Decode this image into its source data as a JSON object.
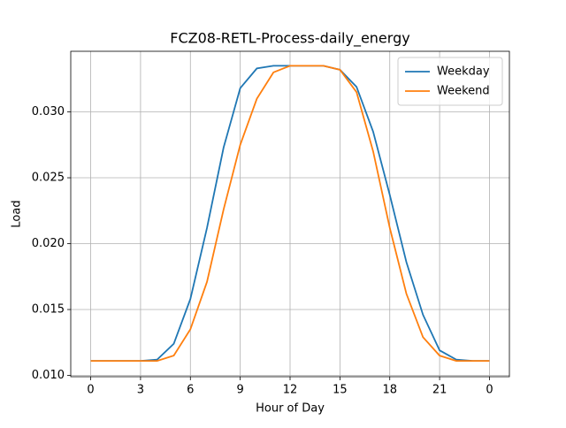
{
  "chart_data": {
    "type": "line",
    "title": "FCZ08-RETL-Process-daily_energy",
    "xlabel": "Hour of Day",
    "ylabel": "Load",
    "x": [
      0,
      1,
      2,
      3,
      4,
      5,
      6,
      7,
      8,
      9,
      10,
      11,
      12,
      13,
      14,
      15,
      16,
      17,
      18,
      19,
      20,
      21,
      22,
      23,
      24
    ],
    "series": [
      {
        "name": "Weekday",
        "color": "#1f77b4",
        "values": [
          0.0111,
          0.0111,
          0.0111,
          0.0111,
          0.0112,
          0.0124,
          0.0158,
          0.0212,
          0.0273,
          0.0318,
          0.0333,
          0.0335,
          0.0335,
          0.0335,
          0.0335,
          0.0332,
          0.0319,
          0.0285,
          0.0237,
          0.0186,
          0.0146,
          0.0119,
          0.0112,
          0.0111,
          0.0111
        ]
      },
      {
        "name": "Weekend",
        "color": "#ff7f0e",
        "values": [
          0.0111,
          0.0111,
          0.0111,
          0.0111,
          0.0111,
          0.0115,
          0.0135,
          0.0171,
          0.0226,
          0.0275,
          0.031,
          0.033,
          0.0335,
          0.0335,
          0.0335,
          0.0332,
          0.0315,
          0.027,
          0.0212,
          0.0162,
          0.0129,
          0.0115,
          0.0111,
          0.0111,
          0.0111
        ]
      }
    ],
    "xlim": [
      -1.2,
      25.2
    ],
    "xticks": [
      0,
      3,
      6,
      9,
      12,
      15,
      18,
      21,
      {
        "value": 24,
        "label": "0"
      }
    ],
    "ylim": [
      0.0099,
      0.0346
    ],
    "yticks": [
      {
        "value": 0.01,
        "label": "0.010"
      },
      0.015,
      {
        "value": 0.02,
        "label": "0.020"
      },
      0.025,
      {
        "value": 0.03,
        "label": "0.030"
      }
    ],
    "grid": true,
    "legend": "upper right"
  }
}
